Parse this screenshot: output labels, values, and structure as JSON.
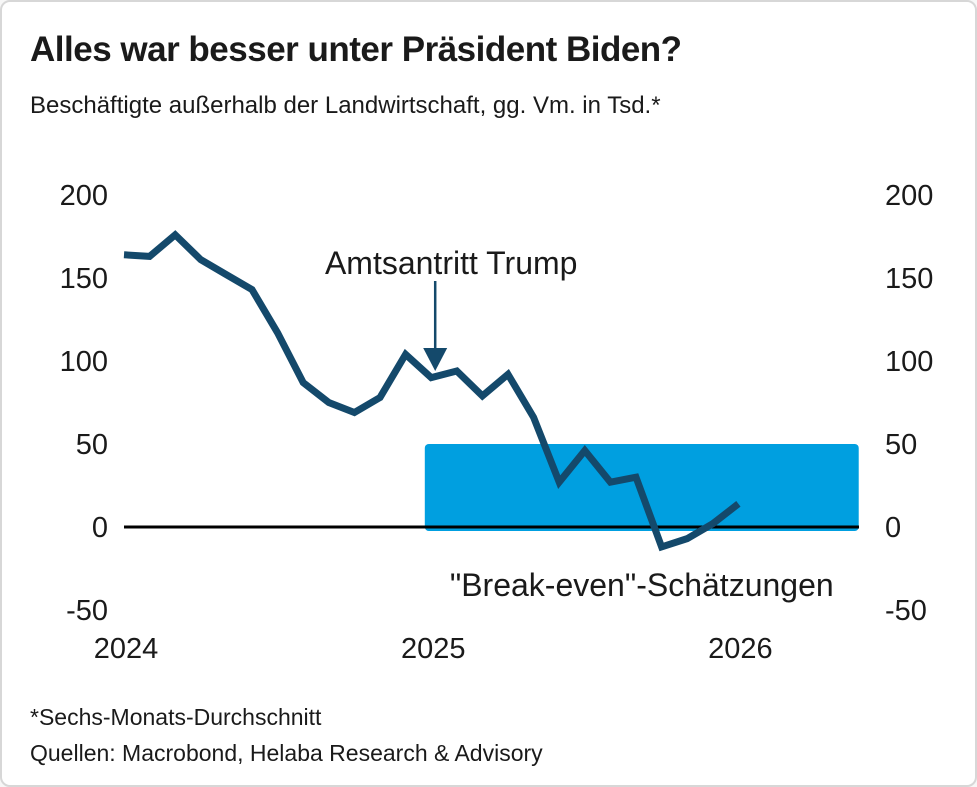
{
  "header": {
    "title": "Alles war besser unter Präsident Biden?",
    "subtitle": "Beschäftigte außerhalb der Landwirtschaft, gg. Vm. in Tsd.*"
  },
  "footer": {
    "footnote": "*Sechs-Monats-Durchschnitt",
    "sources": "Quellen: Macrobond, Helaba Research & Advisory"
  },
  "colors": {
    "line": "#14496b",
    "band": "#009fe0",
    "band_label": "#29a9e1",
    "annotation": "#14496b",
    "axis_text": "#1a1a1a",
    "zero_line": "#000000"
  },
  "chart_data": {
    "type": "line",
    "title": "Alles war besser unter Präsident Biden?",
    "subtitle": "Beschäftigte außerhalb der Landwirtschaft, gg. Vm. in Tsd.*",
    "x_start_month": "2024-01",
    "x_frequency": "monthly",
    "series": [
      {
        "name": "Beschäftigte außerhalb der Landwirtschaft, gg. Vm. in Tsd. (6-Monats-Durchschnitt)",
        "values": [
          164,
          163,
          176,
          161,
          152,
          143,
          117,
          87,
          75,
          69,
          78,
          104,
          90,
          94,
          79,
          92,
          66,
          27,
          46,
          27,
          30,
          -12,
          -7,
          2,
          14
        ]
      }
    ],
    "y_axis": {
      "ticks": [
        200,
        150,
        100,
        50,
        0,
        -50
      ],
      "ylim": [
        -80,
        220
      ],
      "sides": "both",
      "grid": false
    },
    "x_axis": {
      "ticks": [
        {
          "label": "2024",
          "month_index": 0
        },
        {
          "label": "2025",
          "month_index": 12
        },
        {
          "label": "2026",
          "month_index": 24
        }
      ]
    },
    "band": {
      "label": "\"Break-even\"-Schätzungen",
      "y_from": 0,
      "y_to": 50,
      "start_month_index": 11.75,
      "end_month_index": 28.7
    },
    "annotation": {
      "text": "Amtsantritt Trump",
      "target_month": "2025-01",
      "target_month_index": 12,
      "target_value": 90
    },
    "legend": "none"
  }
}
